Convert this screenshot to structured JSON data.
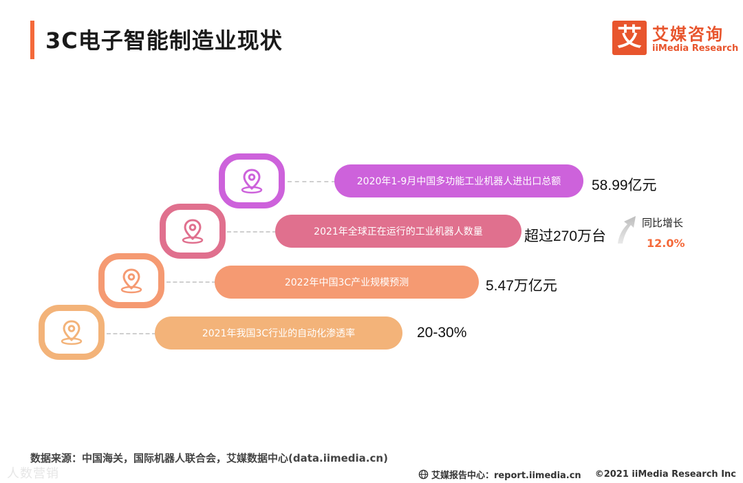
{
  "header": {
    "title": "3C电子智能制造业现状"
  },
  "logo": {
    "mark": "艾",
    "cn": "艾媒咨询",
    "en": "iiMedia Research"
  },
  "stats": [
    {
      "label": "2020年1-9月中国多功能工业机器人进出口总额",
      "value": "58.99亿元",
      "color": "#cd62db"
    },
    {
      "label": "2021年全球正在运行的工业机器人数量",
      "value": "超过270万台",
      "color": "#e0708e"
    },
    {
      "label": "2022年中国3C产业规模预测",
      "value": "5.47万亿元",
      "color": "#f59a72"
    },
    {
      "label": "2021年我国3C行业的自动化渗透率",
      "value": "20-30%",
      "color": "#f3b379"
    }
  ],
  "growth": {
    "label": "同比增长",
    "value": "12.0%"
  },
  "source": "数据来源：中国海关，国际机器人联合会，艾媒数据中心(data.iimedia.cn)",
  "watermark": "人数营销",
  "footer": {
    "report": "艾媒报告中心：report.iimedia.cn",
    "copyright": "©2021  iiMedia Research  Inc"
  }
}
